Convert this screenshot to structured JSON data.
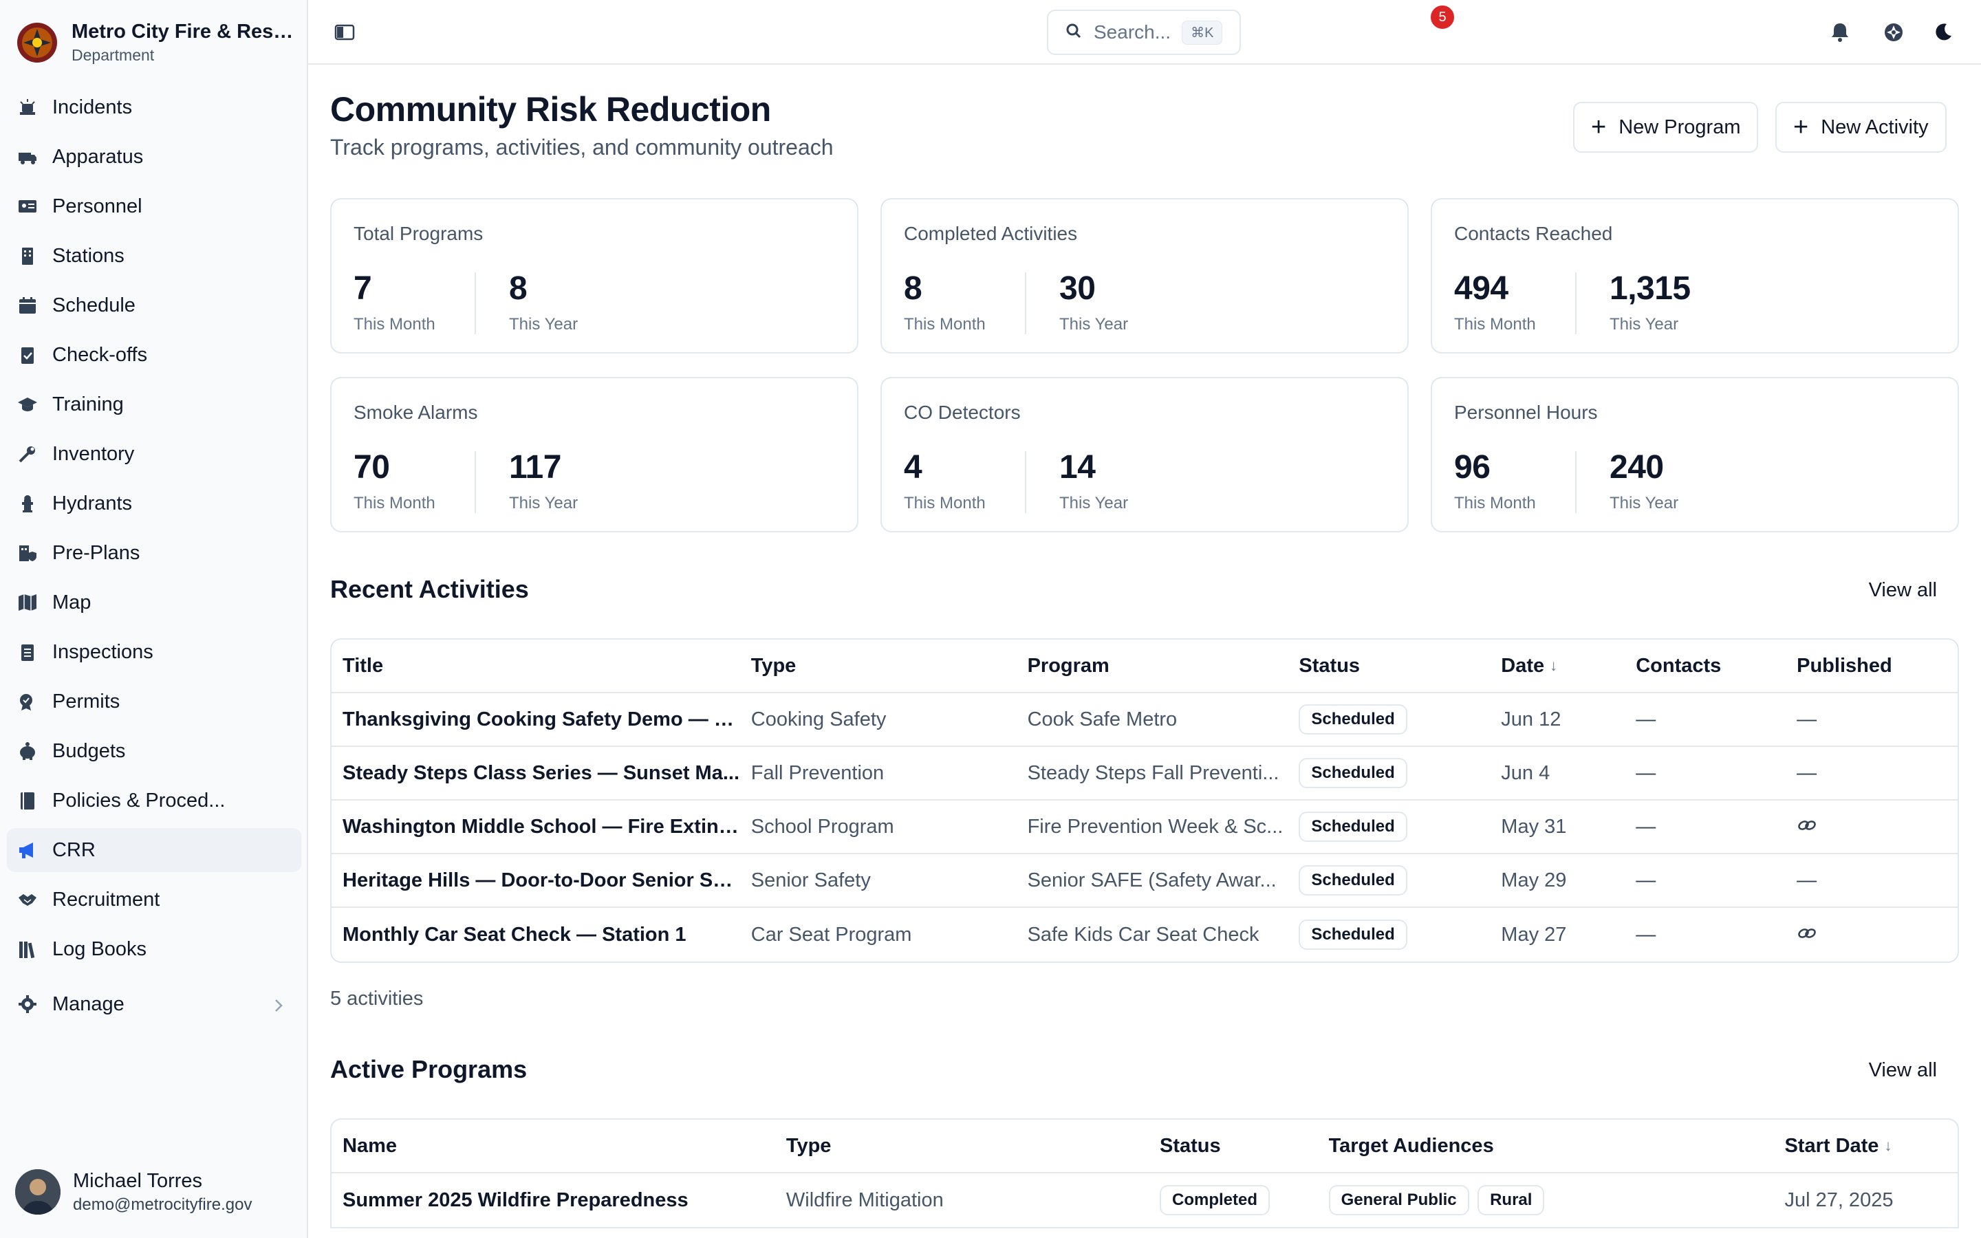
{
  "brand": {
    "name": "Metro City Fire & Resc...",
    "subtitle": "Department"
  },
  "nav": [
    {
      "label": "Incidents",
      "icon": "siren-icon"
    },
    {
      "label": "Apparatus",
      "icon": "truck-icon"
    },
    {
      "label": "Personnel",
      "icon": "id-card-icon"
    },
    {
      "label": "Stations",
      "icon": "building-icon"
    },
    {
      "label": "Schedule",
      "icon": "calendar-icon"
    },
    {
      "label": "Check-offs",
      "icon": "clipboard-check-icon"
    },
    {
      "label": "Training",
      "icon": "graduation-cap-icon"
    },
    {
      "label": "Inventory",
      "icon": "wrench-icon"
    },
    {
      "label": "Hydrants",
      "icon": "hydrant-icon"
    },
    {
      "label": "Pre-Plans",
      "icon": "building-shield-icon"
    },
    {
      "label": "Map",
      "icon": "map-icon"
    },
    {
      "label": "Inspections",
      "icon": "clipboard-list-icon"
    },
    {
      "label": "Permits",
      "icon": "badge-check-icon"
    },
    {
      "label": "Budgets",
      "icon": "piggy-bank-icon"
    },
    {
      "label": "Policies & Proced...",
      "icon": "book-icon"
    },
    {
      "label": "CRR",
      "icon": "megaphone-icon",
      "active": true
    },
    {
      "label": "Recruitment",
      "icon": "handshake-icon"
    },
    {
      "label": "Log Books",
      "icon": "books-icon"
    }
  ],
  "manage": {
    "label": "Manage"
  },
  "user": {
    "name": "Michael Torres",
    "email": "demo@metrocityfire.gov"
  },
  "topbar": {
    "search_placeholder": "Search...",
    "shortcut": "⌘K",
    "notification_count": "5"
  },
  "page": {
    "title": "Community Risk Reduction",
    "subtitle": "Track programs, activities, and community outreach",
    "new_program": "New Program",
    "new_activity": "New Activity"
  },
  "stats": [
    {
      "title": "Total Programs",
      "month": "7",
      "year": "8"
    },
    {
      "title": "Completed Activities",
      "month": "8",
      "year": "30"
    },
    {
      "title": "Contacts Reached",
      "month": "494",
      "year": "1,315"
    },
    {
      "title": "Smoke Alarms",
      "month": "70",
      "year": "117"
    },
    {
      "title": "CO Detectors",
      "month": "4",
      "year": "14"
    },
    {
      "title": "Personnel Hours",
      "month": "96",
      "year": "240"
    }
  ],
  "stat_labels": {
    "month": "This Month",
    "year": "This Year"
  },
  "recent": {
    "title": "Recent Activities",
    "view_all": "View all",
    "columns": [
      "Title",
      "Type",
      "Program",
      "Status",
      "Date",
      "Contacts",
      "Published"
    ],
    "rows": [
      {
        "title": "Thanksgiving Cooking Safety Demo — F...",
        "type": "Cooking Safety",
        "program": "Cook Safe Metro",
        "status": "Scheduled",
        "date": "Jun 12",
        "contacts": "—",
        "published": "—"
      },
      {
        "title": "Steady Steps Class Series — Sunset Ma...",
        "type": "Fall Prevention",
        "program": "Steady Steps Fall Preventi...",
        "status": "Scheduled",
        "date": "Jun 4",
        "contacts": "—",
        "published": "—"
      },
      {
        "title": "Washington Middle School — Fire Exting...",
        "type": "School Program",
        "program": "Fire Prevention Week & Sc...",
        "status": "Scheduled",
        "date": "May 31",
        "contacts": "—",
        "published": "link-icon"
      },
      {
        "title": "Heritage Hills — Door-to-Door Senior Sa...",
        "type": "Senior Safety",
        "program": "Senior SAFE (Safety Awar...",
        "status": "Scheduled",
        "date": "May 29",
        "contacts": "—",
        "published": "—"
      },
      {
        "title": "Monthly Car Seat Check — Station 1",
        "type": "Car Seat Program",
        "program": "Safe Kids Car Seat Check",
        "status": "Scheduled",
        "date": "May 27",
        "contacts": "—",
        "published": "link-icon"
      }
    ],
    "count_label": "5 activities"
  },
  "programs": {
    "title": "Active Programs",
    "view_all": "View all",
    "columns": [
      "Name",
      "Type",
      "Status",
      "Target Audiences",
      "Start Date"
    ],
    "rows": [
      {
        "name": "Summer 2025 Wildfire Preparedness",
        "type": "Wildfire Mitigation",
        "status": "Completed",
        "audiences": [
          "General Public",
          "Rural"
        ],
        "start": "Jul 27, 2025"
      }
    ]
  },
  "colors": {
    "accent": "#2563eb",
    "badge": "#dc2626",
    "border": "#e2e8f0"
  }
}
